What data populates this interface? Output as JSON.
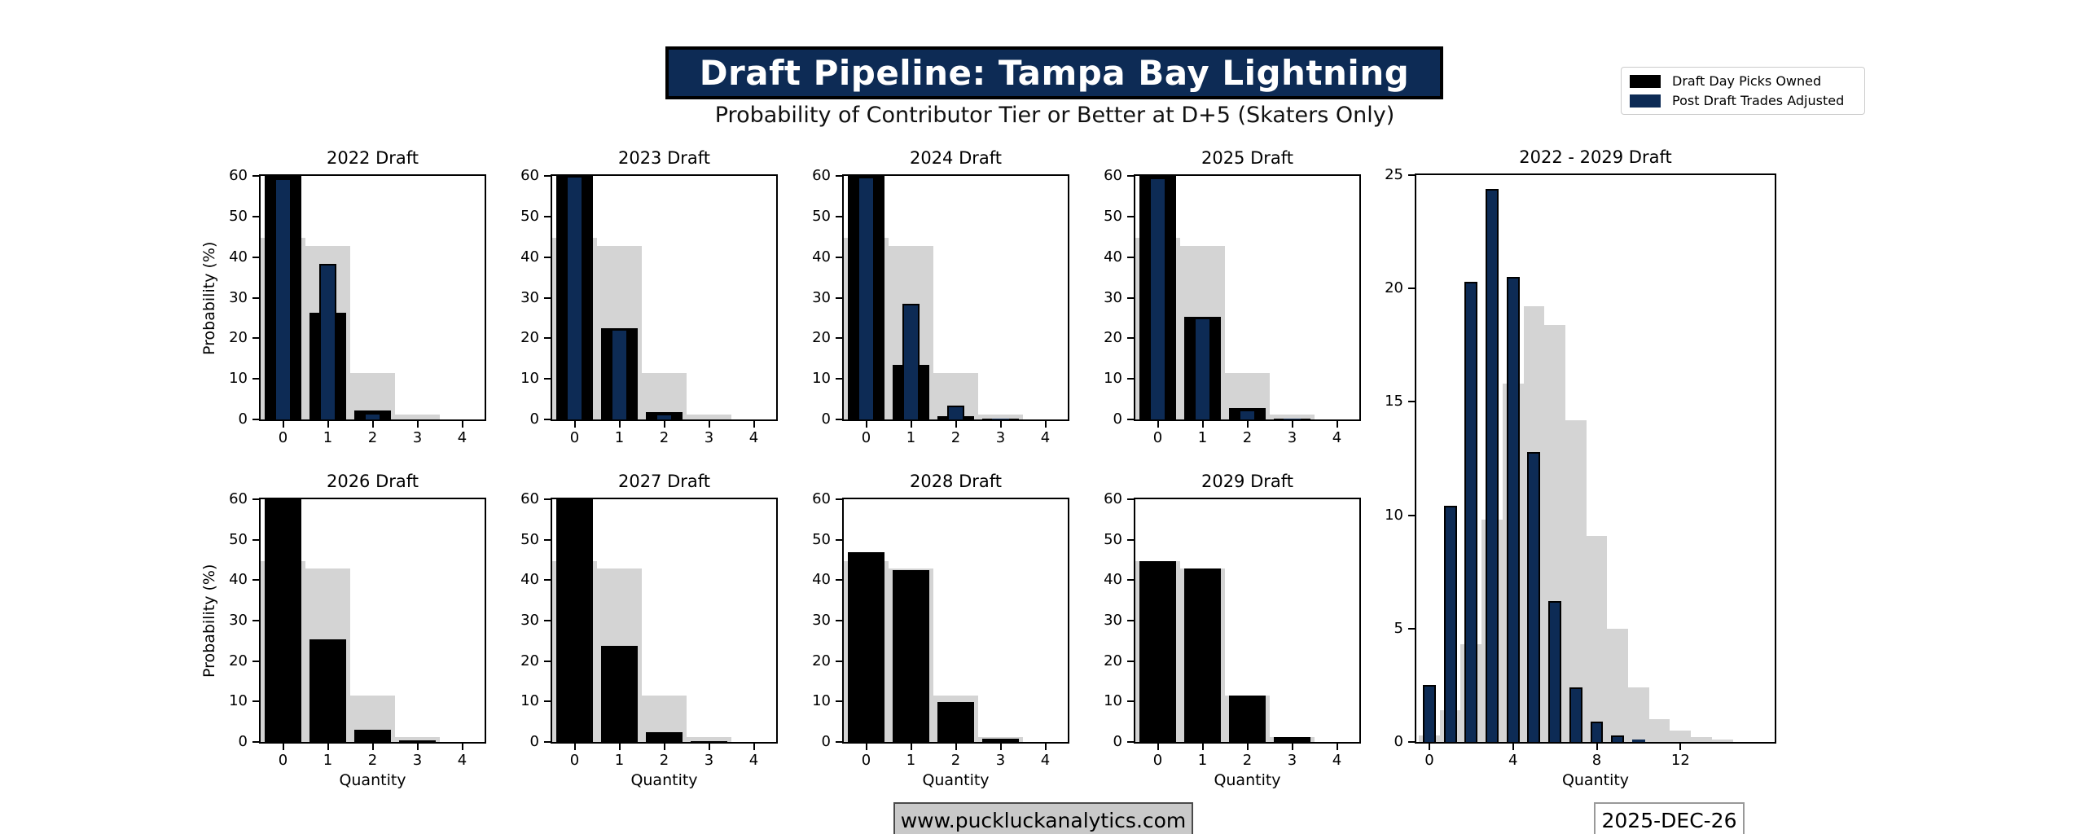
{
  "header": {
    "title": "Draft Pipeline: Tampa Bay Lightning",
    "subtitle": "Probability of Contributor Tier or Better at D+5 (Skaters Only)"
  },
  "legend": {
    "position": "top-right",
    "items": [
      {
        "label": "Draft Day Picks Owned",
        "color": "#000000"
      },
      {
        "label": "Post Draft Trades Adjusted",
        "color": "#0d2b55"
      }
    ]
  },
  "footer": {
    "website": "www.puckluckanalytics.com",
    "date": "2025-DEC-26"
  },
  "colors": {
    "bar_owned": "#000000",
    "bar_adjusted": "#0d2b55",
    "bar_background": "#d4d4d4",
    "title_bg": "#0d2b55",
    "title_text": "#ffffff"
  },
  "chart_data": [
    {
      "type": "bar",
      "title": "2022 Draft",
      "xlabel": "",
      "ylabel": "Probability (%)",
      "ylim": [
        0,
        60
      ],
      "yticks": [
        0,
        10,
        20,
        30,
        40,
        50,
        60
      ],
      "xlim": [
        -0.5,
        4.5
      ],
      "xticks": [
        0,
        1,
        2,
        3,
        4
      ],
      "categories": [
        0,
        1,
        2,
        3,
        4
      ],
      "series": [
        {
          "role": "background",
          "color": "#d4d4d4",
          "bar_width": 1.0,
          "values": [
            44.7,
            42.8,
            11.5,
            1.3,
            0
          ]
        },
        {
          "role": "owned",
          "color": "#000000",
          "bar_width": 0.82,
          "values": [
            60,
            26.3,
            2.2,
            0.1,
            0
          ]
        },
        {
          "role": "adjusted",
          "color": "#0d2b55",
          "bar_width": 0.38,
          "values": [
            59.4,
            38.3,
            1.7,
            0,
            0
          ]
        }
      ]
    },
    {
      "type": "bar",
      "title": "2023 Draft",
      "xlabel": "",
      "ylabel": "",
      "ylim": [
        0,
        60
      ],
      "yticks": [
        0,
        10,
        20,
        30,
        40,
        50,
        60
      ],
      "xlim": [
        -0.5,
        4.5
      ],
      "xticks": [
        0,
        1,
        2,
        3,
        4
      ],
      "categories": [
        0,
        1,
        2,
        3,
        4
      ],
      "series": [
        {
          "role": "background",
          "color": "#d4d4d4",
          "bar_width": 1.0,
          "values": [
            44.7,
            42.8,
            11.5,
            1.3,
            0
          ]
        },
        {
          "role": "owned",
          "color": "#000000",
          "bar_width": 0.82,
          "values": [
            60,
            22.5,
            1.8,
            0.1,
            0
          ]
        },
        {
          "role": "adjusted",
          "color": "#0d2b55",
          "bar_width": 0.38,
          "values": [
            60,
            22.2,
            1.4,
            0,
            0
          ]
        }
      ]
    },
    {
      "type": "bar",
      "title": "2024 Draft",
      "xlabel": "",
      "ylabel": "",
      "ylim": [
        0,
        60
      ],
      "yticks": [
        0,
        10,
        20,
        30,
        40,
        50,
        60
      ],
      "xlim": [
        -0.5,
        4.5
      ],
      "xticks": [
        0,
        1,
        2,
        3,
        4
      ],
      "categories": [
        0,
        1,
        2,
        3,
        4
      ],
      "series": [
        {
          "role": "background",
          "color": "#d4d4d4",
          "bar_width": 1.0,
          "values": [
            44.7,
            42.8,
            11.5,
            1.3,
            0
          ]
        },
        {
          "role": "owned",
          "color": "#000000",
          "bar_width": 0.82,
          "values": [
            60,
            13.5,
            0.8,
            0.3,
            0
          ]
        },
        {
          "role": "adjusted",
          "color": "#0d2b55",
          "bar_width": 0.38,
          "values": [
            59.8,
            28.4,
            3.5,
            0.2,
            0
          ]
        }
      ]
    },
    {
      "type": "bar",
      "title": "2025 Draft",
      "xlabel": "",
      "ylabel": "",
      "ylim": [
        0,
        60
      ],
      "yticks": [
        0,
        10,
        20,
        30,
        40,
        50,
        60
      ],
      "xlim": [
        -0.5,
        4.5
      ],
      "xticks": [
        0,
        1,
        2,
        3,
        4
      ],
      "categories": [
        0,
        1,
        2,
        3,
        4
      ],
      "series": [
        {
          "role": "background",
          "color": "#d4d4d4",
          "bar_width": 1.0,
          "values": [
            44.7,
            42.8,
            11.5,
            1.3,
            0
          ]
        },
        {
          "role": "owned",
          "color": "#000000",
          "bar_width": 0.82,
          "values": [
            60,
            25.3,
            2.9,
            0.3,
            0
          ]
        },
        {
          "role": "adjusted",
          "color": "#0d2b55",
          "bar_width": 0.38,
          "values": [
            59.7,
            25.0,
            2.5,
            0.2,
            0
          ]
        }
      ]
    },
    {
      "type": "bar",
      "title": "2026 Draft",
      "xlabel": "Quantity",
      "ylabel": "Probability (%)",
      "ylim": [
        0,
        60
      ],
      "yticks": [
        0,
        10,
        20,
        30,
        40,
        50,
        60
      ],
      "xlim": [
        -0.5,
        4.5
      ],
      "xticks": [
        0,
        1,
        2,
        3,
        4
      ],
      "categories": [
        0,
        1,
        2,
        3,
        4
      ],
      "series": [
        {
          "role": "background",
          "color": "#d4d4d4",
          "bar_width": 1.0,
          "values": [
            44.7,
            42.8,
            11.5,
            1.3,
            0
          ]
        },
        {
          "role": "owned",
          "color": "#000000",
          "bar_width": 0.82,
          "values": [
            60,
            25.3,
            3.1,
            0.4,
            0
          ]
        }
      ]
    },
    {
      "type": "bar",
      "title": "2027 Draft",
      "xlabel": "Quantity",
      "ylabel": "",
      "ylim": [
        0,
        60
      ],
      "yticks": [
        0,
        10,
        20,
        30,
        40,
        50,
        60
      ],
      "xlim": [
        -0.5,
        4.5
      ],
      "xticks": [
        0,
        1,
        2,
        3,
        4
      ],
      "categories": [
        0,
        1,
        2,
        3,
        4
      ],
      "series": [
        {
          "role": "background",
          "color": "#d4d4d4",
          "bar_width": 1.0,
          "values": [
            44.7,
            42.8,
            11.5,
            1.3,
            0
          ]
        },
        {
          "role": "owned",
          "color": "#000000",
          "bar_width": 0.82,
          "values": [
            60,
            23.8,
            2.5,
            0.2,
            0
          ]
        }
      ]
    },
    {
      "type": "bar",
      "title": "2028 Draft",
      "xlabel": "Quantity",
      "ylabel": "",
      "ylim": [
        0,
        60
      ],
      "yticks": [
        0,
        10,
        20,
        30,
        40,
        50,
        60
      ],
      "xlim": [
        -0.5,
        4.5
      ],
      "xticks": [
        0,
        1,
        2,
        3,
        4
      ],
      "categories": [
        0,
        1,
        2,
        3,
        4
      ],
      "series": [
        {
          "role": "background",
          "color": "#d4d4d4",
          "bar_width": 1.0,
          "values": [
            44.7,
            42.8,
            11.5,
            1.3,
            0
          ]
        },
        {
          "role": "owned",
          "color": "#000000",
          "bar_width": 0.82,
          "values": [
            47.0,
            42.5,
            9.8,
            0.9,
            0
          ]
        }
      ]
    },
    {
      "type": "bar",
      "title": "2029 Draft",
      "xlabel": "Quantity",
      "ylabel": "",
      "ylim": [
        0,
        60
      ],
      "yticks": [
        0,
        10,
        20,
        30,
        40,
        50,
        60
      ],
      "xlim": [
        -0.5,
        4.5
      ],
      "xticks": [
        0,
        1,
        2,
        3,
        4
      ],
      "categories": [
        0,
        1,
        2,
        3,
        4
      ],
      "series": [
        {
          "role": "background",
          "color": "#d4d4d4",
          "bar_width": 1.0,
          "values": [
            44.7,
            42.8,
            11.5,
            1.3,
            0
          ]
        },
        {
          "role": "owned",
          "color": "#000000",
          "bar_width": 0.82,
          "values": [
            44.7,
            42.8,
            11.5,
            1.3,
            0
          ]
        }
      ]
    },
    {
      "type": "bar",
      "title": "2022 - 2029 Draft",
      "xlabel": "Quantity",
      "ylabel": "",
      "ylim": [
        0,
        25
      ],
      "yticks": [
        0,
        5,
        10,
        15,
        20,
        25
      ],
      "xlim": [
        -0.62,
        16.5
      ],
      "xticks": [
        0,
        4,
        8,
        12
      ],
      "categories": [
        0,
        1,
        2,
        3,
        4,
        5,
        6,
        7,
        8,
        9,
        10,
        11,
        12,
        13,
        14,
        15
      ],
      "series": [
        {
          "role": "background",
          "color": "#d4d4d4",
          "bar_width": 1.0,
          "values": [
            0.3,
            1.4,
            4.3,
            9.8,
            15.8,
            19.2,
            18.4,
            14.2,
            9.1,
            5.0,
            2.4,
            1.0,
            0.5,
            0.2,
            0.1,
            0
          ]
        },
        {
          "role": "adjusted",
          "color": "#0d2b55",
          "bar_width": 0.62,
          "values": [
            2.5,
            10.4,
            20.3,
            24.4,
            20.5,
            12.8,
            6.2,
            2.4,
            0.9,
            0.3,
            0.1,
            0,
            0,
            0,
            0,
            0
          ]
        }
      ]
    }
  ]
}
